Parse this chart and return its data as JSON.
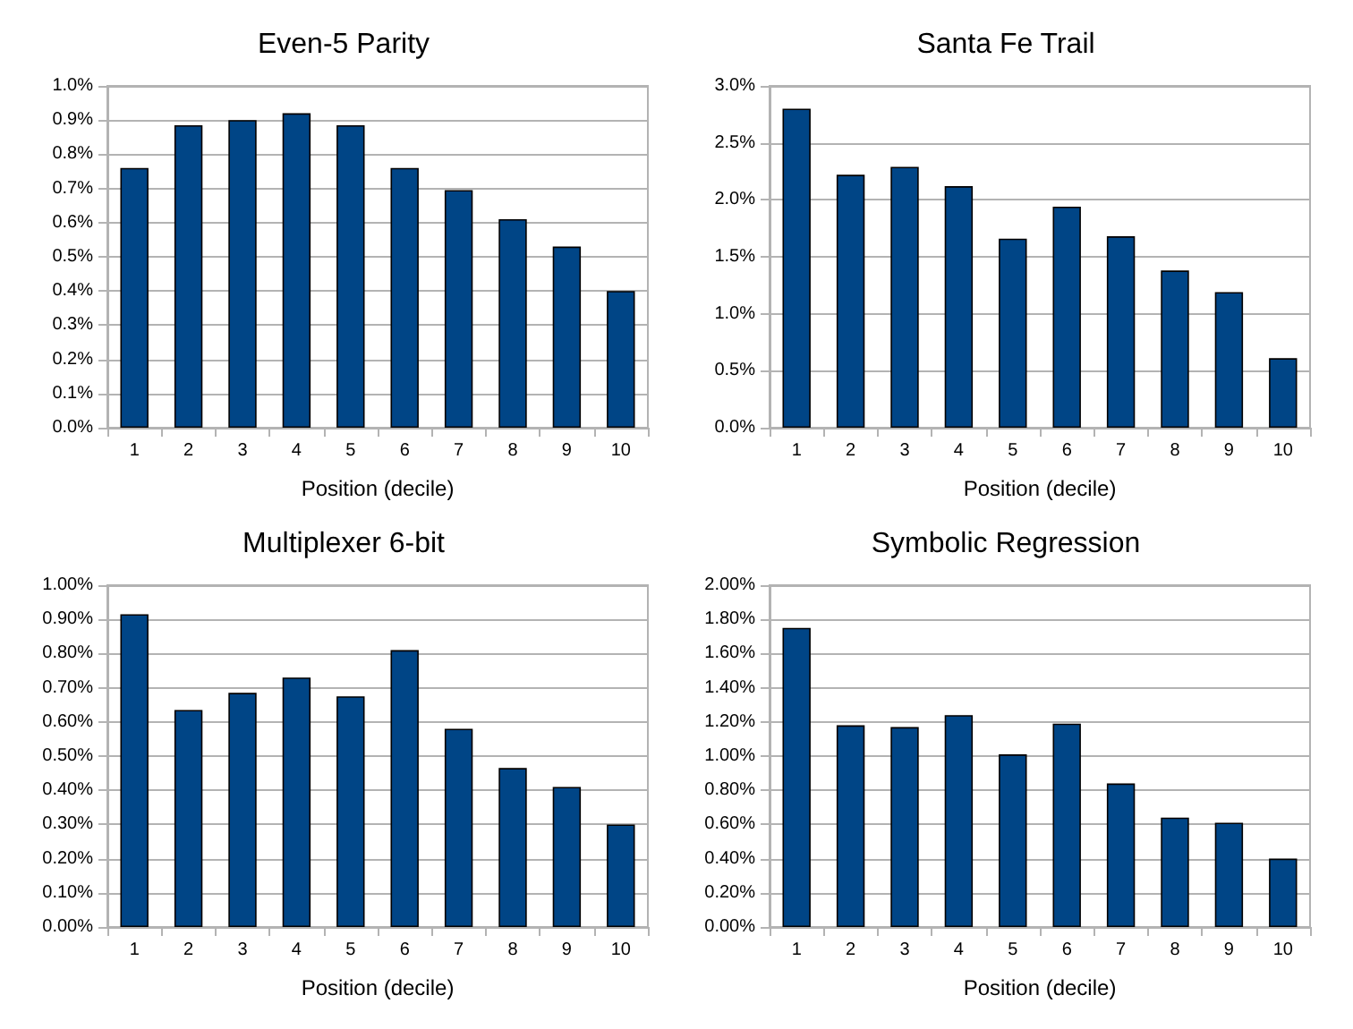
{
  "chart_data": [
    {
      "type": "bar",
      "title": "Even-5 Parity",
      "xlabel": "Position (decile)",
      "categories": [
        "1",
        "2",
        "3",
        "4",
        "5",
        "6",
        "7",
        "8",
        "9",
        "10"
      ],
      "color": "#004586",
      "values": [
        0.76,
        0.885,
        0.9,
        0.92,
        0.885,
        0.76,
        0.695,
        0.61,
        0.53,
        0.4
      ],
      "ylim": [
        0,
        1
      ],
      "yticks": [
        {
          "value": 0,
          "label": "0.0%"
        },
        {
          "value": 0.1,
          "label": "0.1%"
        },
        {
          "value": 0.2,
          "label": "0.2%"
        },
        {
          "value": 0.3,
          "label": "0.3%"
        },
        {
          "value": 0.4,
          "label": "0.4%"
        },
        {
          "value": 0.5,
          "label": "0.5%"
        },
        {
          "value": 0.6,
          "label": "0.6%"
        },
        {
          "value": 0.7,
          "label": "0.7%"
        },
        {
          "value": 0.8,
          "label": "0.8%"
        },
        {
          "value": 0.9,
          "label": "0.9%"
        },
        {
          "value": 1,
          "label": "1.0%"
        }
      ],
      "grid": "y"
    },
    {
      "type": "bar",
      "title": "Santa Fe Trail",
      "xlabel": "Position (decile)",
      "categories": [
        "1",
        "2",
        "3",
        "4",
        "5",
        "6",
        "7",
        "8",
        "9",
        "10"
      ],
      "color": "#004586",
      "values": [
        2.8,
        2.22,
        2.29,
        2.12,
        1.66,
        1.94,
        1.68,
        1.38,
        1.19,
        0.61
      ],
      "ylim": [
        0,
        3
      ],
      "yticks": [
        {
          "value": 0,
          "label": "0.0%"
        },
        {
          "value": 0.5,
          "label": "0.5%"
        },
        {
          "value": 1,
          "label": "1.0%"
        },
        {
          "value": 1.5,
          "label": "1.5%"
        },
        {
          "value": 2,
          "label": "2.0%"
        },
        {
          "value": 2.5,
          "label": "2.5%"
        },
        {
          "value": 3,
          "label": "3.0%"
        }
      ],
      "grid": "y"
    },
    {
      "type": "bar",
      "title": "Multiplexer 6-bit",
      "xlabel": "Position (decile)",
      "categories": [
        "1",
        "2",
        "3",
        "4",
        "5",
        "6",
        "7",
        "8",
        "9",
        "10"
      ],
      "color": "#004586",
      "values": [
        0.915,
        0.635,
        0.685,
        0.73,
        0.675,
        0.81,
        0.58,
        0.465,
        0.41,
        0.3
      ],
      "ylim": [
        0,
        1
      ],
      "yticks": [
        {
          "value": 0,
          "label": "0.00%"
        },
        {
          "value": 0.1,
          "label": "0.10%"
        },
        {
          "value": 0.2,
          "label": "0.20%"
        },
        {
          "value": 0.3,
          "label": "0.30%"
        },
        {
          "value": 0.4,
          "label": "0.40%"
        },
        {
          "value": 0.5,
          "label": "0.50%"
        },
        {
          "value": 0.6,
          "label": "0.60%"
        },
        {
          "value": 0.7,
          "label": "0.70%"
        },
        {
          "value": 0.8,
          "label": "0.80%"
        },
        {
          "value": 0.9,
          "label": "0.90%"
        },
        {
          "value": 1,
          "label": "1.00%"
        }
      ],
      "grid": "y"
    },
    {
      "type": "bar",
      "title": "Symbolic Regression",
      "xlabel": "Position (decile)",
      "categories": [
        "1",
        "2",
        "3",
        "4",
        "5",
        "6",
        "7",
        "8",
        "9",
        "10"
      ],
      "color": "#004586",
      "values": [
        1.75,
        1.18,
        1.17,
        1.24,
        1.01,
        1.19,
        0.84,
        0.64,
        0.61,
        0.4
      ],
      "ylim": [
        0,
        2
      ],
      "yticks": [
        {
          "value": 0,
          "label": "0.00%"
        },
        {
          "value": 0.2,
          "label": "0.20%"
        },
        {
          "value": 0.4,
          "label": "0.40%"
        },
        {
          "value": 0.6,
          "label": "0.60%"
        },
        {
          "value": 0.8,
          "label": "0.80%"
        },
        {
          "value": 1,
          "label": "1.00%"
        },
        {
          "value": 1.2,
          "label": "1.20%"
        },
        {
          "value": 1.4,
          "label": "1.40%"
        },
        {
          "value": 1.6,
          "label": "1.60%"
        },
        {
          "value": 1.8,
          "label": "1.80%"
        },
        {
          "value": 2,
          "label": "2.00%"
        }
      ],
      "grid": "y"
    }
  ]
}
